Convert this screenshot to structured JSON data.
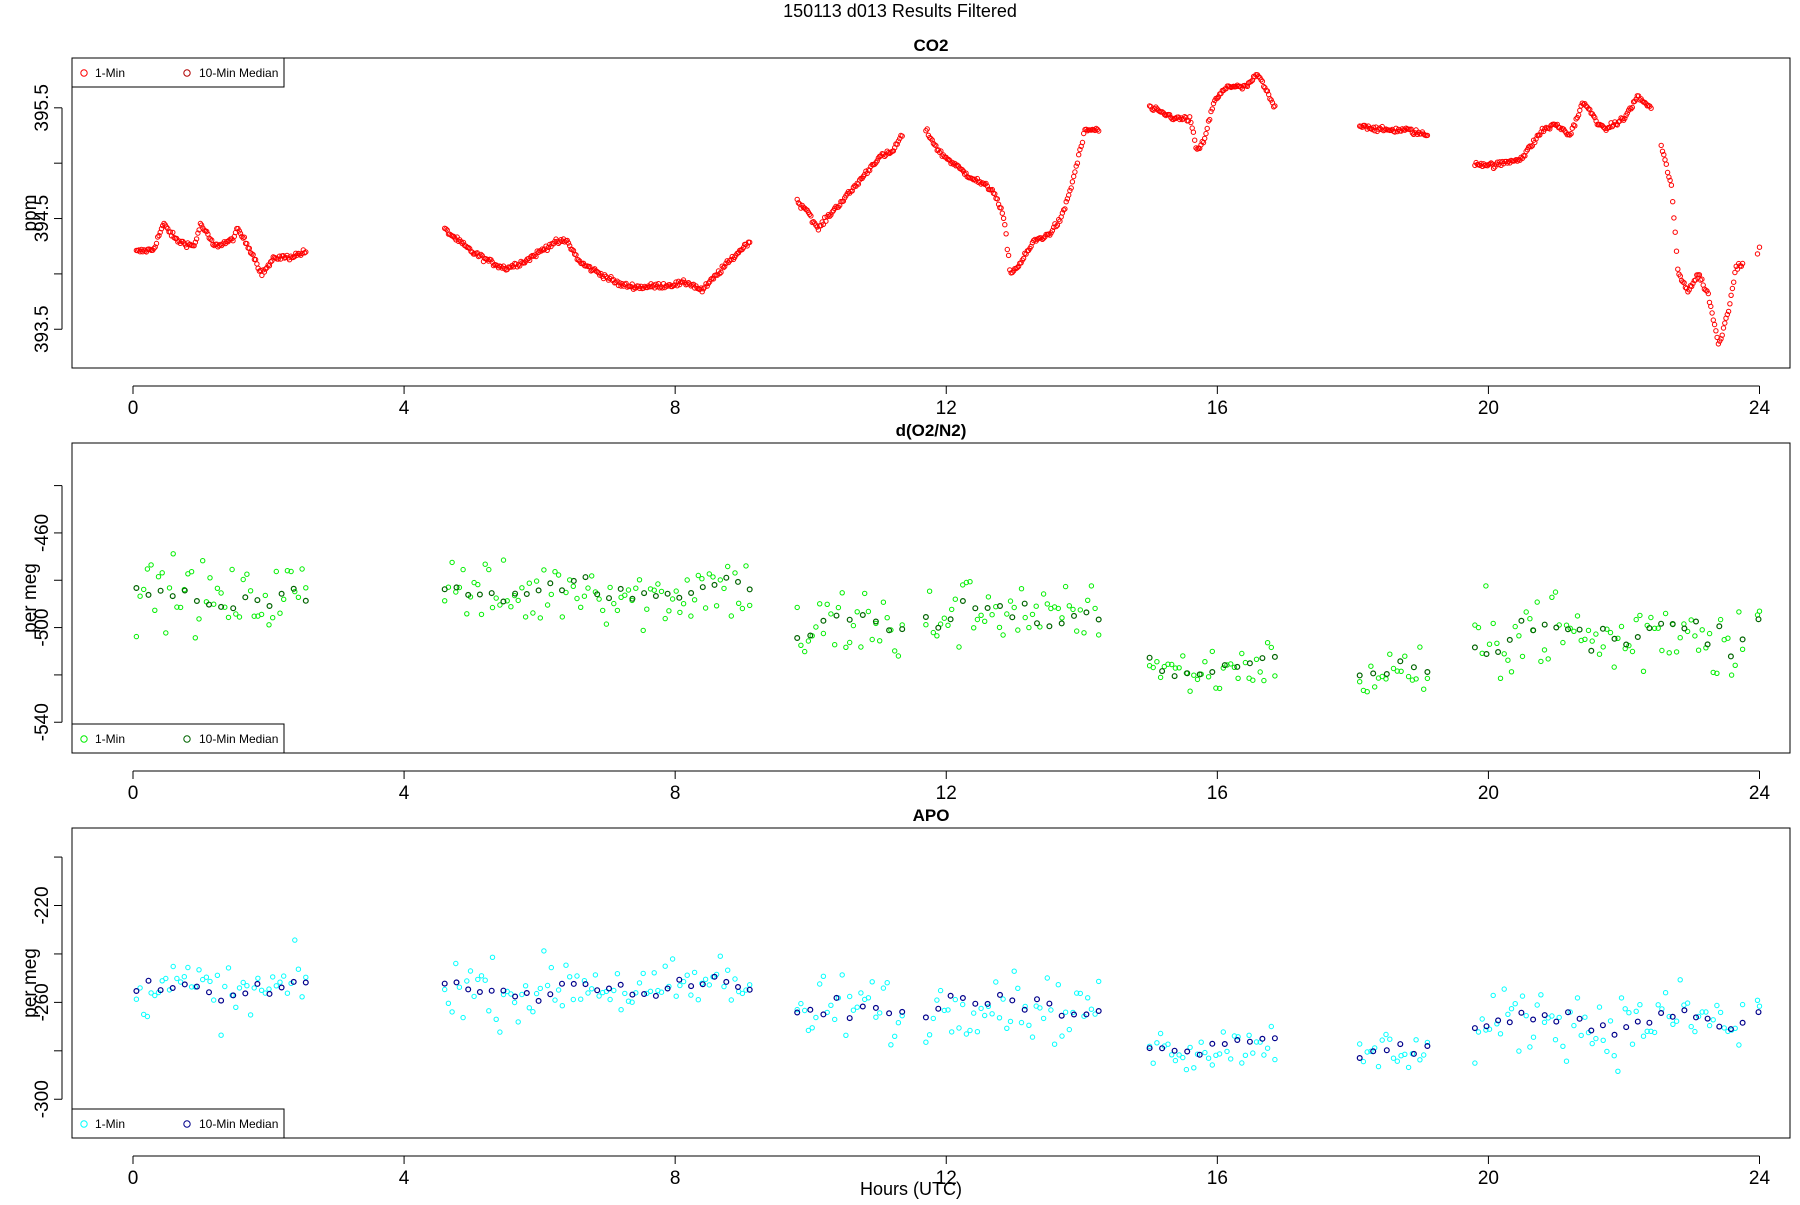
{
  "figure": {
    "suptitle": "150113   d013   Results Filtered",
    "xlabel": "Hours (UTC)"
  },
  "chart_data": [
    {
      "type": "scatter",
      "title": "CO2",
      "ylabel": "ppm",
      "xlim": [
        -0.9,
        24.45
      ],
      "ylim": [
        393.15,
        395.95
      ],
      "xticks": [
        0,
        4,
        8,
        12,
        16,
        20,
        24
      ],
      "yticks": [
        393.5,
        394.0,
        394.5,
        395.0,
        395.5
      ],
      "ytick_labels": [
        "393.5",
        "",
        "394.5",
        "",
        "395.5"
      ],
      "legend": {
        "position": "top-left",
        "entries": [
          "1-Min",
          "10-Min Median"
        ]
      },
      "colors": {
        "one_min": "#ff0000",
        "median": "#b00000"
      },
      "segments": [
        {
          "start": 0.05,
          "end": 2.55,
          "points": [
            [
              0.05,
              394.2
            ],
            [
              0.3,
              394.22
            ],
            [
              0.45,
              394.45
            ],
            [
              0.65,
              394.3
            ],
            [
              0.9,
              394.25
            ],
            [
              1.0,
              394.45
            ],
            [
              1.2,
              394.25
            ],
            [
              1.45,
              394.3
            ],
            [
              1.55,
              394.4
            ],
            [
              1.75,
              394.2
            ],
            [
              1.9,
              394.0
            ],
            [
              2.1,
              394.15
            ],
            [
              2.3,
              394.15
            ],
            [
              2.55,
              394.2
            ]
          ]
        },
        {
          "start": 4.6,
          "end": 9.1,
          "points": [
            [
              4.6,
              394.4
            ],
            [
              4.8,
              394.3
            ],
            [
              5.0,
              394.2
            ],
            [
              5.3,
              394.1
            ],
            [
              5.5,
              394.05
            ],
            [
              5.8,
              394.12
            ],
            [
              6.2,
              394.28
            ],
            [
              6.4,
              394.3
            ],
            [
              6.6,
              394.1
            ],
            [
              6.9,
              394.0
            ],
            [
              7.2,
              393.9
            ],
            [
              7.5,
              393.88
            ],
            [
              7.9,
              393.9
            ],
            [
              8.2,
              393.92
            ],
            [
              8.4,
              393.85
            ],
            [
              8.7,
              394.05
            ],
            [
              9.1,
              394.3
            ]
          ]
        },
        {
          "start": 9.8,
          "end": 11.35,
          "points": [
            [
              9.8,
              394.65
            ],
            [
              9.95,
              394.58
            ],
            [
              10.1,
              394.4
            ],
            [
              10.3,
              394.55
            ],
            [
              10.6,
              394.75
            ],
            [
              11.0,
              395.05
            ],
            [
              11.2,
              395.1
            ],
            [
              11.35,
              395.25
            ]
          ]
        },
        {
          "start": 11.7,
          "end": 14.25,
          "points": [
            [
              11.7,
              395.3
            ],
            [
              11.9,
              395.1
            ],
            [
              12.3,
              394.9
            ],
            [
              12.7,
              394.75
            ],
            [
              12.85,
              394.5
            ],
            [
              12.95,
              394.0
            ],
            [
              13.1,
              394.1
            ],
            [
              13.3,
              394.3
            ],
            [
              13.5,
              394.35
            ],
            [
              13.7,
              394.5
            ],
            [
              13.85,
              394.8
            ],
            [
              14.05,
              395.3
            ],
            [
              14.25,
              395.3
            ]
          ]
        },
        {
          "start": 15.0,
          "end": 16.85,
          "points": [
            [
              15.0,
              395.5
            ],
            [
              15.2,
              395.45
            ],
            [
              15.4,
              395.4
            ],
            [
              15.6,
              395.4
            ],
            [
              15.7,
              395.1
            ],
            [
              15.8,
              395.2
            ],
            [
              15.95,
              395.55
            ],
            [
              16.15,
              395.7
            ],
            [
              16.4,
              395.68
            ],
            [
              16.6,
              395.8
            ],
            [
              16.85,
              395.5
            ]
          ]
        },
        {
          "start": 18.1,
          "end": 19.1,
          "points": [
            [
              18.1,
              395.35
            ],
            [
              18.4,
              395.3
            ],
            [
              18.8,
              395.3
            ],
            [
              19.1,
              395.25
            ]
          ]
        },
        {
          "start": 19.8,
          "end": 22.4,
          "points": [
            [
              19.8,
              395.0
            ],
            [
              20.1,
              394.98
            ],
            [
              20.5,
              395.05
            ],
            [
              20.8,
              395.3
            ],
            [
              21.0,
              395.35
            ],
            [
              21.2,
              395.25
            ],
            [
              21.4,
              395.55
            ],
            [
              21.7,
              395.3
            ],
            [
              22.0,
              395.4
            ],
            [
              22.2,
              395.6
            ],
            [
              22.4,
              395.5
            ]
          ]
        },
        {
          "start": 22.55,
          "end": 23.75,
          "points": [
            [
              22.55,
              395.15
            ],
            [
              22.7,
              394.8
            ],
            [
              22.8,
              394.0
            ],
            [
              22.95,
              393.85
            ],
            [
              23.1,
              394.0
            ],
            [
              23.25,
              393.8
            ],
            [
              23.4,
              393.35
            ],
            [
              23.55,
              393.7
            ],
            [
              23.65,
              394.05
            ],
            [
              23.75,
              394.1
            ]
          ]
        },
        {
          "start": 23.97,
          "end": 24.0,
          "points": [
            [
              23.97,
              394.2
            ],
            [
              24.0,
              394.25
            ]
          ]
        }
      ]
    },
    {
      "type": "scatter",
      "title": "d(O2/N2)",
      "ylabel": "per meg",
      "xlim": [
        -0.9,
        24.45
      ],
      "ylim": [
        -553,
        -422
      ],
      "xticks": [
        0,
        4,
        8,
        12,
        16,
        20,
        24
      ],
      "yticks": [
        -540,
        -520,
        -500,
        -480,
        -460,
        -440
      ],
      "ytick_labels": [
        "-540",
        "",
        "-500",
        "",
        "-460",
        ""
      ],
      "legend": {
        "position": "bottom-left",
        "entries": [
          "1-Min",
          "10-Min Median"
        ]
      },
      "colors": {
        "one_min": "#00ee00",
        "median": "#006400"
      },
      "segments": [
        {
          "start": 0.05,
          "end": 2.55,
          "center": -487,
          "spread": 8
        },
        {
          "start": 4.6,
          "end": 9.1,
          "center": -485,
          "spread": 8
        },
        {
          "start": 9.8,
          "end": 11.35,
          "center": -500,
          "spread": 9
        },
        {
          "start": 11.7,
          "end": 14.25,
          "center": -494,
          "spread": 8
        },
        {
          "start": 15.0,
          "end": 16.85,
          "center": -517,
          "spread": 6
        },
        {
          "start": 18.1,
          "end": 19.1,
          "center": -520,
          "spread": 6
        },
        {
          "start": 19.8,
          "end": 23.75,
          "center": -503,
          "spread": 10
        },
        {
          "start": 23.97,
          "end": 24.0,
          "center": -495,
          "spread": 2
        }
      ]
    },
    {
      "type": "scatter",
      "title": "APO",
      "ylabel": "per meg",
      "xlim": [
        -0.9,
        24.45
      ],
      "ylim": [
        -316,
        -188
      ],
      "xticks": [
        0,
        4,
        8,
        12,
        16,
        20,
        24
      ],
      "yticks": [
        -300,
        -280,
        -260,
        -240,
        -220,
        -200
      ],
      "ytick_labels": [
        "-300",
        "",
        "-260",
        "",
        "-220",
        ""
      ],
      "legend": {
        "position": "bottom-left",
        "entries": [
          "1-Min",
          "10-Min Median"
        ]
      },
      "colors": {
        "one_min": "#00ffff",
        "median": "#00008b"
      },
      "segments": [
        {
          "start": 0.05,
          "end": 2.55,
          "center": -255,
          "spread": 7
        },
        {
          "start": 4.6,
          "end": 9.1,
          "center": -254,
          "spread": 7
        },
        {
          "start": 9.8,
          "end": 11.35,
          "center": -264,
          "spread": 8
        },
        {
          "start": 11.7,
          "end": 14.25,
          "center": -261,
          "spread": 7
        },
        {
          "start": 15.0,
          "end": 16.85,
          "center": -278,
          "spread": 5
        },
        {
          "start": 18.1,
          "end": 19.1,
          "center": -281,
          "spread": 5
        },
        {
          "start": 19.8,
          "end": 23.75,
          "center": -268,
          "spread": 8
        },
        {
          "start": 23.97,
          "end": 24.0,
          "center": -263,
          "spread": 2
        }
      ]
    }
  ]
}
